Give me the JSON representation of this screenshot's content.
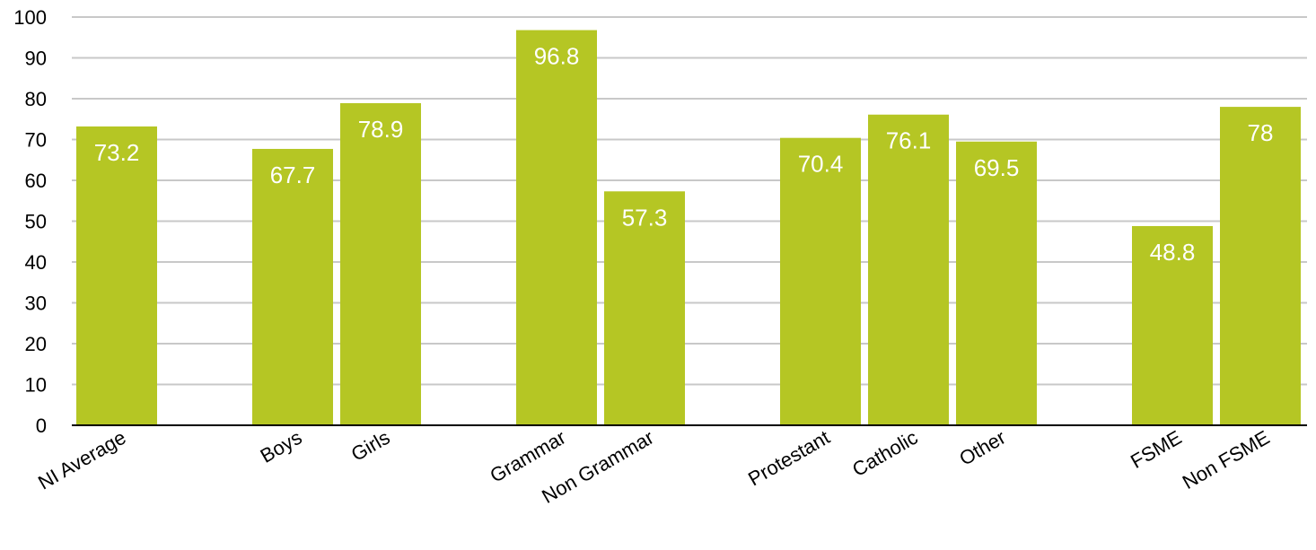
{
  "chart_data": {
    "type": "bar",
    "title": "",
    "xlabel": "",
    "ylabel": "",
    "ylim": [
      0,
      100
    ],
    "yticks": [
      0,
      10,
      20,
      30,
      40,
      50,
      60,
      70,
      80,
      90,
      100
    ],
    "grid": true,
    "bar_color": "#b5c624",
    "grid_color": "#c8c8c8",
    "groups": [
      {
        "categories": [
          "NI Average"
        ],
        "values": [
          73.2
        ]
      },
      {
        "categories": [
          "Boys",
          "Girls"
        ],
        "values": [
          67.7,
          78.9
        ]
      },
      {
        "categories": [
          "Grammar",
          "Non Grammar"
        ],
        "values": [
          96.8,
          57.3
        ]
      },
      {
        "categories": [
          "Protestant",
          "Catholic",
          "Other"
        ],
        "values": [
          70.4,
          76.1,
          69.5
        ]
      },
      {
        "categories": [
          "FSME",
          "Non FSME"
        ],
        "values": [
          48.8,
          78
        ]
      }
    ]
  }
}
